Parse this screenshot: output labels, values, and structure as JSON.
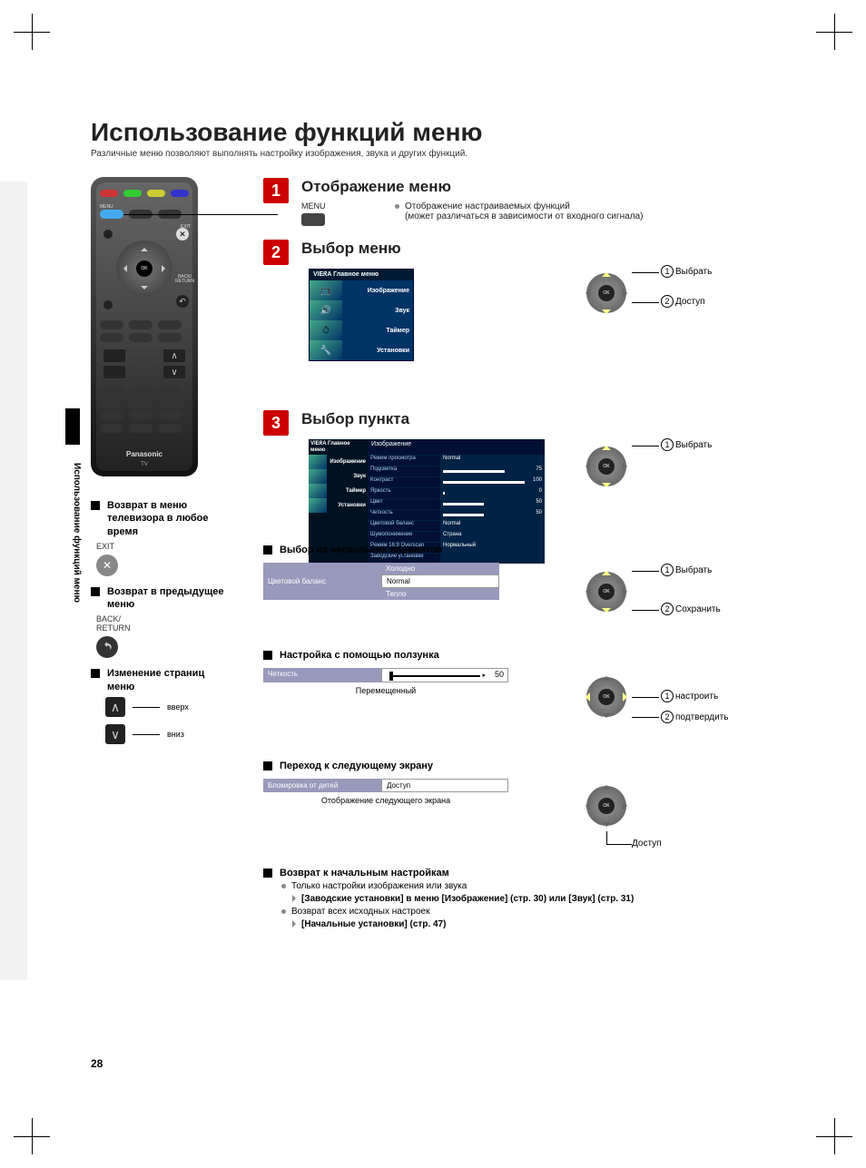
{
  "colors": {
    "step_badge_bg": "#c00",
    "menu_bg": "#0a2a4a",
    "field_label_bg": "#99b",
    "remote_brand": "Panasonic",
    "remote_sub": "TV"
  },
  "title": "Использование функций меню",
  "subtitle": "Различные меню позволяют выполнять настройку изображения, звука и других функций.",
  "side_text": "Использование функций меню",
  "page_number": "28",
  "remote": {
    "menu_label": "MENU",
    "exit_label": "EXIT",
    "back_label": "BACK/\nRETURN",
    "ok_label": "OK"
  },
  "steps": [
    {
      "num": "1",
      "title": "Отображение меню"
    },
    {
      "num": "2",
      "title": "Выбор меню"
    },
    {
      "num": "3",
      "title": "Выбор пункта"
    }
  ],
  "step1": {
    "menu_label": "MENU",
    "desc1": "Отображение настраиваемых функций",
    "desc2": "(может различаться в зависимости от входного сигнала)"
  },
  "main_menu": {
    "header": "VIEᖇA Главное меню",
    "items": [
      "Изображение",
      "Звук",
      "Таймер",
      "Установки"
    ]
  },
  "settings_panel": {
    "header_left": "VIEᖇA Главное меню",
    "header_right": "Изображение",
    "side_items": [
      "Изображение",
      "Звук",
      "Таймер",
      "Установки"
    ],
    "rows": [
      {
        "label": "Режим просмотра",
        "value": "Normal",
        "bar": null
      },
      {
        "label": "Подсветка",
        "value": "75",
        "bar": 68
      },
      {
        "label": "Контраст",
        "value": "100",
        "bar": 90
      },
      {
        "label": "Яркость",
        "value": "0",
        "bar": 2
      },
      {
        "label": "Цвет",
        "value": "50",
        "bar": 45
      },
      {
        "label": "Четкость",
        "value": "50",
        "bar": 45
      },
      {
        "label": "Цветовой баланс",
        "value": "Normal",
        "bar": null
      },
      {
        "label": "Шумопонижение",
        "value": "Страна",
        "bar": null
      },
      {
        "label": "Режим 16:9 Overscan",
        "value": "Нормальный",
        "bar": null
      },
      {
        "label": "Заводские установки",
        "value": "",
        "bar": null
      }
    ]
  },
  "dpad_labels": {
    "select": "Выбрать",
    "access": "Доступ",
    "save": "Сохранить",
    "adjust": "настроить",
    "confirm": "подтвердить",
    "access2": "Доступ",
    "one": "1",
    "two": "2"
  },
  "left_notes": [
    {
      "title": "Возврат в меню телевизора в любое время",
      "btn_label": "EXIT",
      "btn_type": "x"
    },
    {
      "title": "Возврат в предыдущее меню",
      "btn_label": "BACK/\nRETURN",
      "btn_type": "return"
    },
    {
      "title": "Изменение страниц меню"
    }
  ],
  "arrows": {
    "up": "вверх",
    "down": "вниз"
  },
  "subsections": {
    "multi": {
      "title": "Выбор из нескольких вариантов",
      "field_label": "Цветовой баланс",
      "options": [
        "Холодно",
        "Normal",
        "Тепло"
      ]
    },
    "slider": {
      "title": "Настройка с помощью ползунка",
      "field_label": "Четкость",
      "value": "50",
      "caption": "Перемещенный"
    },
    "next": {
      "title": "Переход к следующему экрану",
      "field_label": "Блокировка от детей",
      "field_value": "Доступ",
      "caption": "Отображение следующего экрана"
    },
    "reset": {
      "title": "Возврат к начальным настройкам",
      "b1": "Только настройки изображения или звука",
      "b1_ref": "[Заводские установки] в меню [Изображение] (стр. 30) или [Звук] (стр. 31)",
      "b2": "Возврат всех исходных настроек",
      "b2_ref": "[Начальные установки] (стр. 47)"
    }
  }
}
